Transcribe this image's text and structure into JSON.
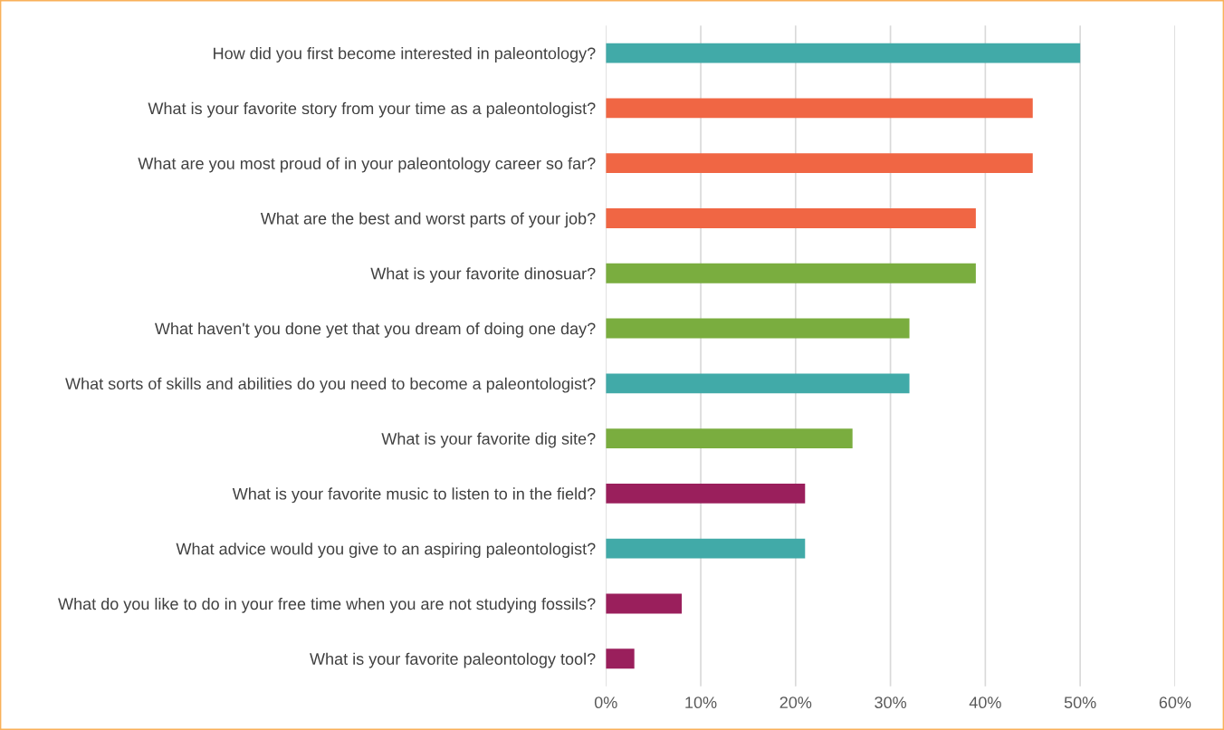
{
  "chart_data": {
    "type": "bar",
    "orientation": "horizontal",
    "categories": [
      "How did you first become interested in paleontology?",
      "What is your favorite story from your time as a paleontologist?",
      "What are you most proud of in your paleontology career so far?",
      "What are the best and worst parts of your job?",
      "What is your favorite dinosuar?",
      "What haven't you done yet that you dream of doing one day?",
      "What sorts of skills and abilities do you need to become a paleontologist?",
      "What is your favorite dig site?",
      "What is your favorite music to listen to in the field?",
      "What advice would you give to an aspiring paleontologist?",
      "What do you like to do in your free time when you are not studying fossils?",
      "What is your favorite paleontology tool?"
    ],
    "values": [
      50,
      45,
      45,
      39,
      39,
      32,
      32,
      26,
      21,
      21,
      8,
      3
    ],
    "colors": [
      "#41aaa8",
      "#f06644",
      "#f06644",
      "#f06644",
      "#7aad3f",
      "#7aad3f",
      "#41aaa8",
      "#7aad3f",
      "#9a1f5c",
      "#41aaa8",
      "#9a1f5c",
      "#9a1f5c"
    ],
    "xlim": [
      0,
      60
    ],
    "xticks": [
      {
        "value": 0,
        "label": "0%"
      },
      {
        "value": 10,
        "label": "10%"
      },
      {
        "value": 20,
        "label": "20%"
      },
      {
        "value": 30,
        "label": "30%"
      },
      {
        "value": 40,
        "label": "40%"
      },
      {
        "value": 50,
        "label": "50%"
      },
      {
        "value": 60,
        "label": "60%"
      }
    ],
    "grid": "x"
  }
}
